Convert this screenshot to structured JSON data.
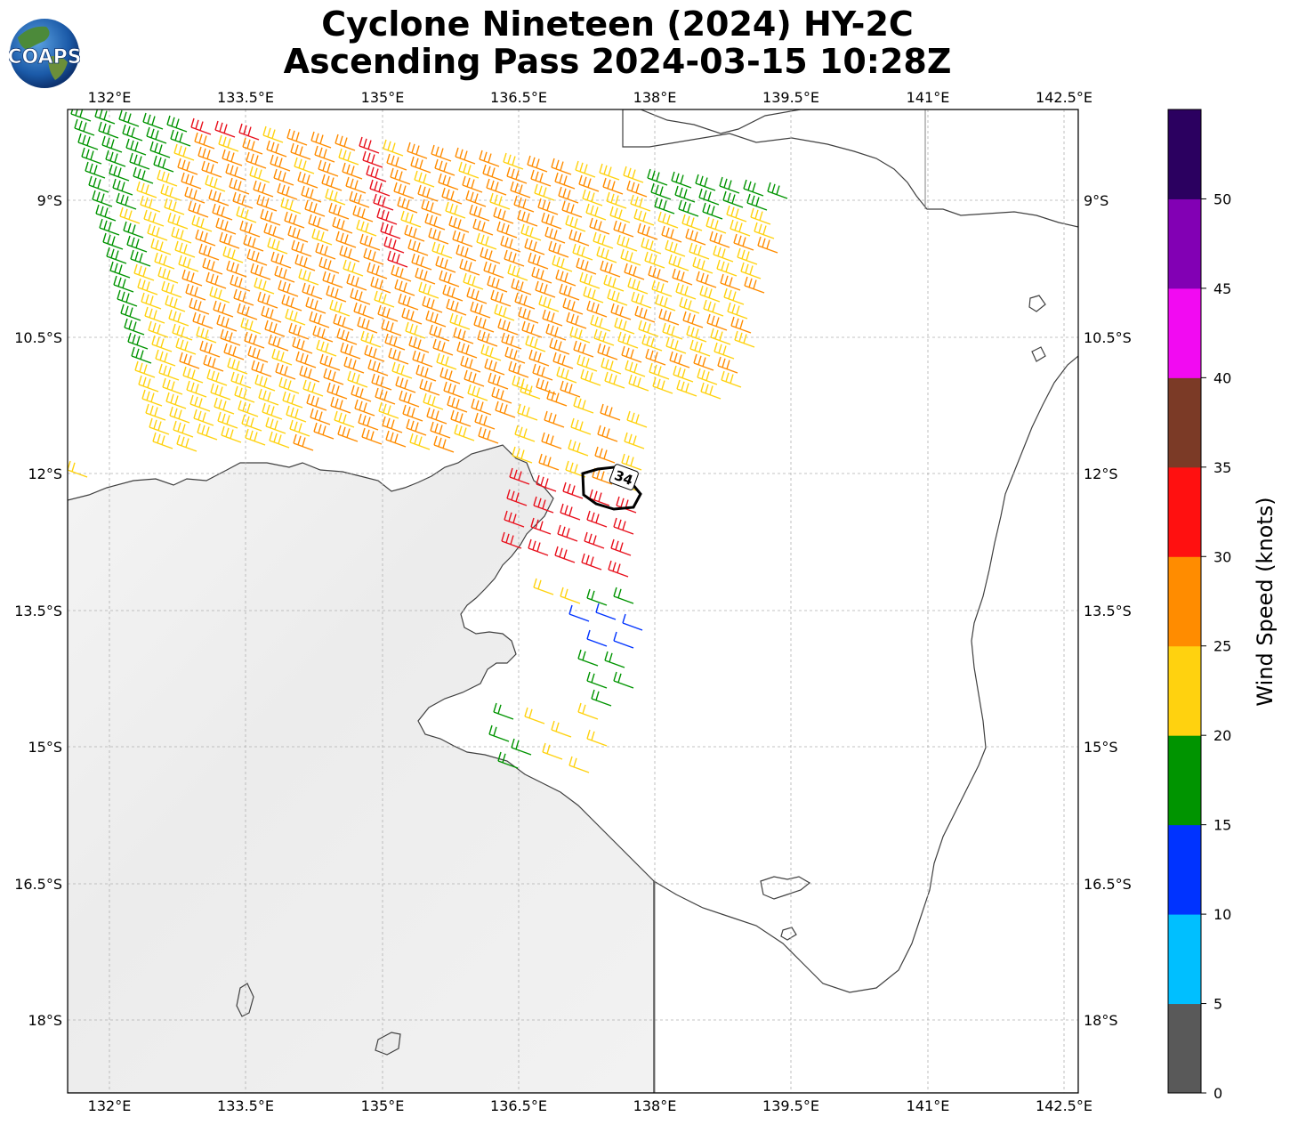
{
  "header": {
    "title_line1": "Cyclone Nineteen (2024) HY-2C",
    "title_line2": "Ascending Pass 2024-03-15 10:28Z",
    "logo_text": "COAPS"
  },
  "map": {
    "lon_ticks": [
      "132°E",
      "133.5°E",
      "135°E",
      "136.5°E",
      "138°E",
      "139.5°E",
      "141°E",
      "142.5°E"
    ],
    "lat_ticks": [
      "9°S",
      "10.5°S",
      "12°S",
      "13.5°S",
      "15°S",
      "16.5°S",
      "18°S"
    ],
    "contour_label": "34",
    "colors": {
      "land_coast": "#404040",
      "grid": "#b0b0b0"
    }
  },
  "wind_barbs": {
    "rows": [
      {
        "color": "#e8a200",
        "segments": "orange"
      }
    ]
  },
  "colorbar": {
    "label": "Wind Speed (knots)",
    "ticks": [
      "0",
      "5",
      "10",
      "15",
      "20",
      "25",
      "30",
      "35",
      "40",
      "45",
      "50"
    ],
    "colors": [
      "#595959",
      "#00bfff",
      "#0033ff",
      "#009400",
      "#ffd20f",
      "#ff8c00",
      "#ff1010",
      "#7b3a26",
      "#f20af2",
      "#8200b4",
      "#2b0060"
    ]
  }
}
